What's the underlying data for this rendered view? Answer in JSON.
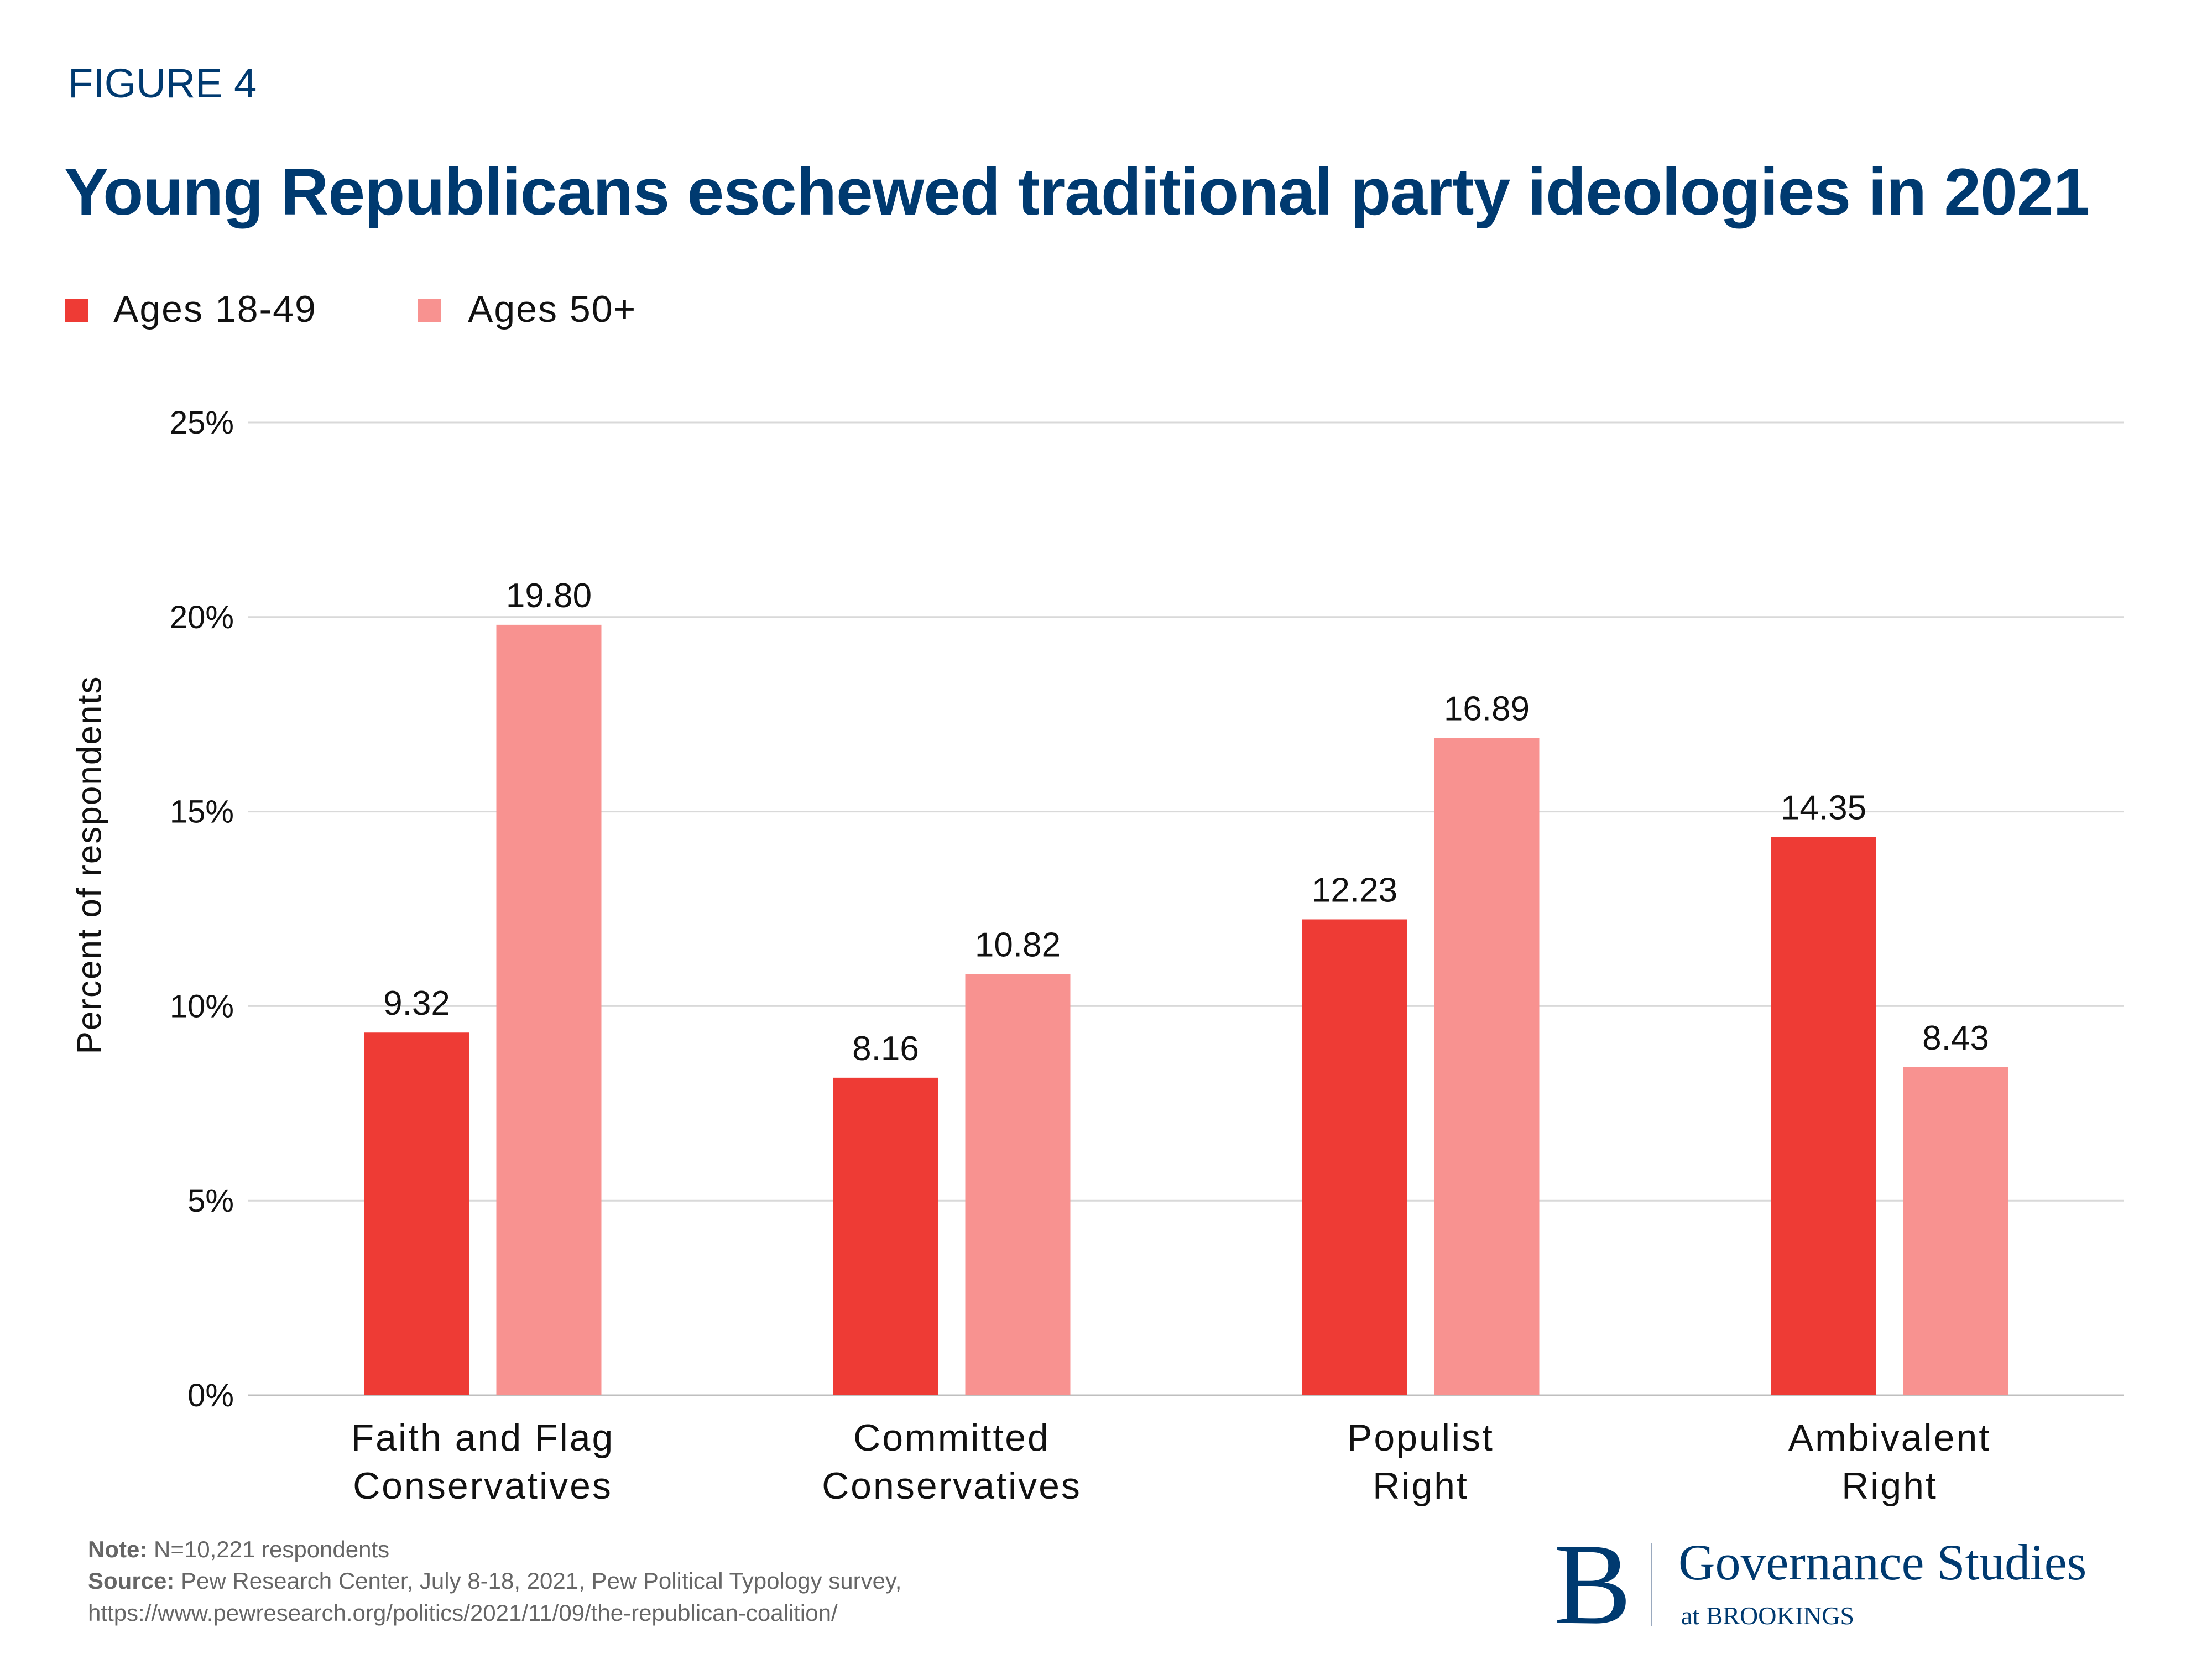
{
  "figure_label": "FIGURE 4",
  "colors": {
    "series1": "#EE3B35",
    "series2": "#F89290",
    "title": "#003A70",
    "grid": "#D9D9D9"
  },
  "chart_data": {
    "type": "bar",
    "title": "Young Republicans eschewed traditional party ideologies in 2021",
    "ylabel": "Percent of respondents",
    "xlabel": "",
    "ylim": [
      0,
      25
    ],
    "yticks": [
      0,
      5,
      10,
      15,
      20,
      25
    ],
    "ytick_labels": [
      "0%",
      "5%",
      "10%",
      "15%",
      "20%",
      "25%"
    ],
    "grid": true,
    "legend_placement": "top-left",
    "categories": [
      [
        "Faith and Flag",
        "Conservatives"
      ],
      [
        "Committed",
        "Conservatives"
      ],
      [
        "Populist",
        "Right"
      ],
      [
        "Ambivalent",
        "Right"
      ]
    ],
    "series": [
      {
        "name": "Ages 18-49",
        "values": [
          9.32,
          8.16,
          12.23,
          14.35
        ],
        "labels": [
          "9.32",
          "8.16",
          "12.23",
          "14.35"
        ]
      },
      {
        "name": "Ages 50+",
        "values": [
          19.8,
          10.82,
          16.89,
          8.43
        ],
        "labels": [
          "19.80",
          "10.82",
          "16.89",
          "8.43"
        ]
      }
    ]
  },
  "footer": {
    "note_label": "Note:",
    "note": " N=10,221 respondents",
    "source_label": "Source:",
    "source": " Pew Research Center, July 8-18, 2021, Pew Political Typology survey,",
    "url": "https://www.pewresearch.org/politics/2021/11/09/the-republican-coalition/"
  },
  "logo": {
    "letter": "B",
    "name": "Governance Studies",
    "sub": "at BROOKINGS"
  }
}
